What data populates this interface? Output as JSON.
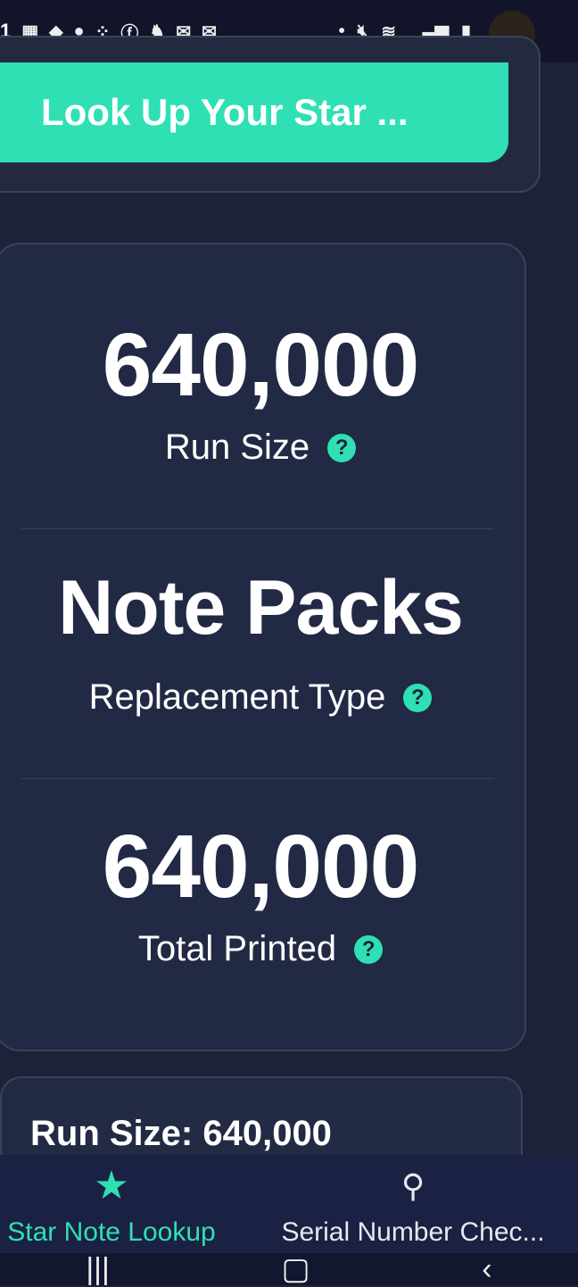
{
  "status_bar": {
    "time": "1",
    "notification_icons": [
      "temu-icon",
      "fetch-icon",
      "account-icon",
      "app-grid-icon",
      "facebook-icon",
      "app-icon",
      "mail-icon",
      "mail-icon"
    ],
    "system_icons": [
      "dot-icon",
      "mute-icon",
      "wifi-icon",
      "signal-icon",
      "battery-icon"
    ]
  },
  "lookup_button": {
    "label": "Look Up Your Star ..."
  },
  "stats": [
    {
      "value": "640,000",
      "label": "Run Size"
    },
    {
      "value": "Note Packs",
      "label": "Replacement Type"
    },
    {
      "value": "640,000",
      "label": "Total Printed"
    }
  ],
  "help_glyph": "?",
  "run_card": {
    "text": "Run Size: 640,000"
  },
  "bottom_nav": [
    {
      "label": "Star Note Lookup",
      "icon": "star-icon",
      "active": true
    },
    {
      "label": "Serial Number Chec...",
      "icon": "search-icon",
      "active": false
    }
  ],
  "colors": {
    "accent": "#2ee0b4",
    "background": "#1c2238",
    "card": "#222944"
  }
}
